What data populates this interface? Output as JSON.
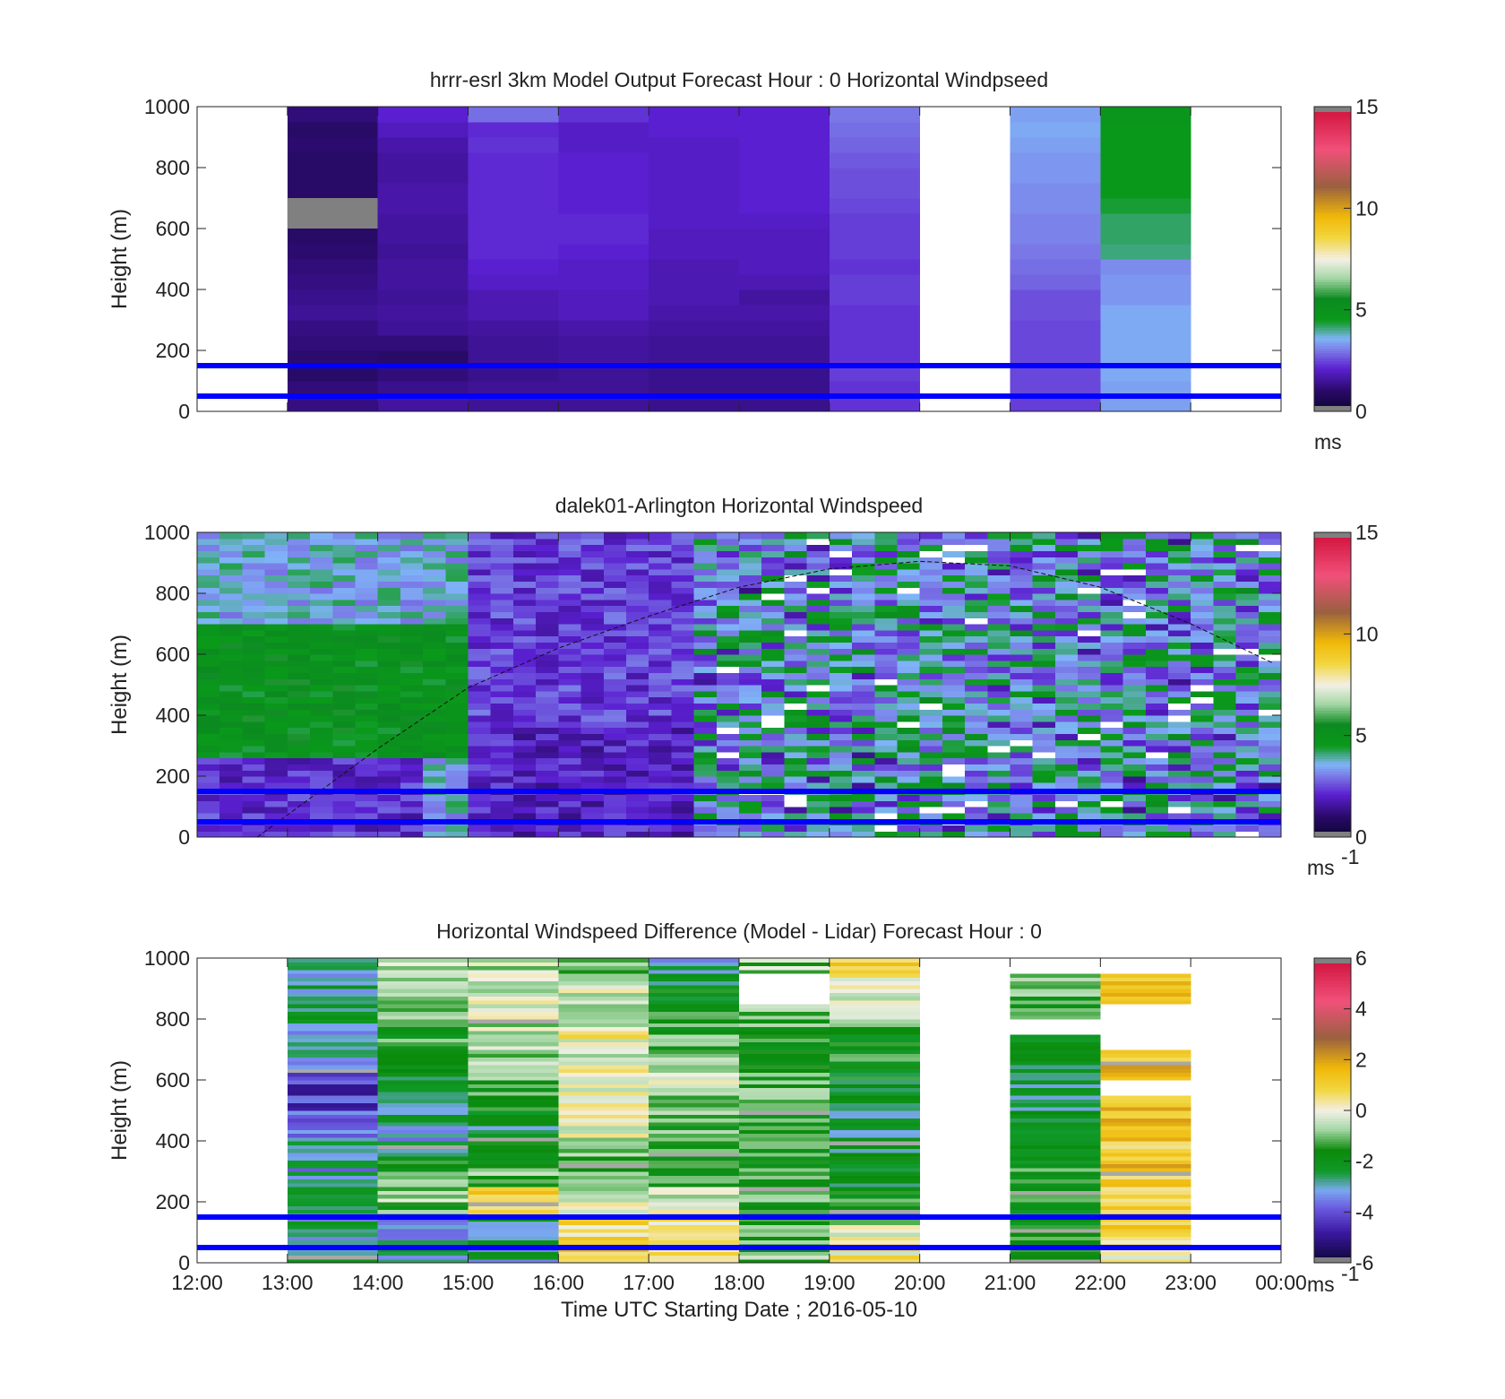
{
  "chart_data": [
    {
      "type": "heatmap",
      "title": "hrrr-esrl 3km Model Output   Forecast Hour : 0 Horizontal Windpseed",
      "xlabel": "",
      "ylabel": "Height (m)",
      "xlim": [
        "12:00",
        "00:00"
      ],
      "ylim": [
        0,
        1000
      ],
      "yticks": [
        "0",
        "200",
        "400",
        "600",
        "800",
        "1000"
      ],
      "colorbar": {
        "min": 0,
        "max": 15,
        "ticks": [
          "0",
          "5",
          "10",
          "15"
        ],
        "unit": "ms",
        "unit_sup": "",
        "colormap": "windspeed"
      },
      "reference_lines_m": [
        50,
        150
      ],
      "columns": [
        {
          "start": "13:00",
          "end": "14:00",
          "values": [
            1.3,
            1.2,
            1.0,
            1.1,
            1.2,
            1.3,
            1.5,
            1.4,
            1.3,
            1.2,
            1.1,
            1.0,
            1.0,
            1.1,
            1.0,
            1.0,
            1.0,
            1.1,
            1.0,
            1.2
          ],
          "nan_at_m": [
            600,
            700
          ]
        },
        {
          "start": "14:00",
          "end": "15:00",
          "values": [
            1.6,
            1.4,
            1.2,
            1.0,
            1.2,
            1.5,
            1.6,
            1.5,
            1.6,
            1.6,
            1.5,
            1.6,
            1.6,
            1.7,
            1.7,
            1.6,
            1.6,
            1.7,
            1.9,
            2.1
          ]
        },
        {
          "start": "15:00",
          "end": "16:00",
          "values": [
            1.5,
            1.5,
            1.4,
            1.5,
            1.5,
            1.6,
            1.8,
            1.8,
            2.0,
            2.1,
            2.2,
            2.2,
            2.2,
            2.2,
            2.2,
            2.2,
            2.2,
            2.3,
            2.2,
            2.9
          ]
        },
        {
          "start": "16:00",
          "end": "17:00",
          "values": [
            1.5,
            1.5,
            1.5,
            1.6,
            1.6,
            1.7,
            1.9,
            1.9,
            2.0,
            2.0,
            2.1,
            2.2,
            2.2,
            2.1,
            2.1,
            2.1,
            2.1,
            2.0,
            2.0,
            2.3
          ]
        },
        {
          "start": "17:00",
          "end": "18:00",
          "values": [
            1.4,
            1.4,
            1.4,
            1.5,
            1.5,
            1.6,
            1.7,
            1.8,
            1.8,
            1.8,
            1.9,
            1.9,
            2.0,
            2.0,
            2.0,
            2.0,
            2.0,
            2.0,
            2.1,
            2.1
          ]
        },
        {
          "start": "18:00",
          "end": "19:00",
          "values": [
            1.4,
            1.4,
            1.4,
            1.5,
            1.5,
            1.6,
            1.7,
            1.6,
            1.8,
            1.9,
            1.9,
            1.9,
            2.0,
            2.1,
            2.1,
            2.1,
            2.1,
            2.1,
            2.1,
            2.1
          ]
        },
        {
          "start": "19:00",
          "end": "20:00",
          "values": [
            2.3,
            2.3,
            2.4,
            2.3,
            2.3,
            2.3,
            2.3,
            2.4,
            2.4,
            2.3,
            2.4,
            2.4,
            2.4,
            2.5,
            2.6,
            2.6,
            2.7,
            2.8,
            2.9,
            3.0
          ]
        },
        {
          "start": "21:00",
          "end": "22:00",
          "values": [
            2.4,
            2.5,
            2.5,
            2.5,
            2.5,
            2.5,
            2.6,
            2.6,
            2.8,
            2.9,
            3.0,
            3.1,
            3.1,
            3.2,
            3.2,
            3.3,
            3.3,
            3.4,
            3.5,
            3.4
          ]
        },
        {
          "start": "22:00",
          "end": "23:00",
          "values": [
            3.4,
            3.4,
            3.5,
            3.5,
            3.5,
            3.5,
            3.5,
            3.3,
            3.3,
            3.2,
            4.1,
            4.2,
            4.2,
            4.4,
            4.6,
            4.6,
            4.6,
            4.6,
            4.6,
            4.8
          ]
        }
      ]
    },
    {
      "type": "heatmap",
      "title": "dalek01-Arlington  Horizontal Windspeed",
      "xlabel": "",
      "ylabel": "Height (m)",
      "xlim": [
        "12:00",
        "00:00"
      ],
      "ylim": [
        0,
        1000
      ],
      "yticks": [
        "0",
        "200",
        "400",
        "600",
        "800",
        "1000"
      ],
      "colorbar": {
        "min": 0,
        "max": 15,
        "ticks": [
          "0",
          "5",
          "10",
          "15"
        ],
        "unit": "ms",
        "unit_sup": "-1",
        "colormap": "windspeed"
      },
      "reference_lines_m": [
        50,
        150
      ],
      "time_resolution_minutes": 15,
      "overlay_curve": {
        "style": "dashed",
        "x": [
          "12:40",
          "14:00",
          "15:00",
          "16:00",
          "17:00",
          "18:00",
          "19:00",
          "20:00",
          "21:00",
          "22:00",
          "23:00",
          "23:55"
        ],
        "y": [
          0,
          290,
          490,
          620,
          725,
          820,
          880,
          905,
          890,
          820,
          700,
          570
        ]
      }
    },
    {
      "type": "heatmap",
      "title": "Horizontal Windspeed Difference (Model - Lidar) Forecast Hour : 0",
      "xlabel": "Time UTC  Starting Date ; 2016-05-10",
      "ylabel": "Height (m)",
      "xlim": [
        "12:00",
        "00:00"
      ],
      "xticks": [
        "12:00",
        "13:00",
        "14:00",
        "15:00",
        "16:00",
        "17:00",
        "18:00",
        "19:00",
        "20:00",
        "21:00",
        "22:00",
        "23:00",
        "00:00"
      ],
      "ylim": [
        0,
        1000
      ],
      "yticks": [
        "0",
        "200",
        "400",
        "600",
        "800",
        "1000"
      ],
      "colorbar": {
        "min": -6,
        "max": 6,
        "ticks": [
          "-6",
          "-4",
          "-2",
          "0",
          "2",
          "4",
          "6"
        ],
        "unit": "ms",
        "unit_sup": "-1",
        "colormap": "difference"
      },
      "reference_lines_m": [
        50,
        150
      ],
      "columns": [
        {
          "start": "13:00",
          "end": "14:00",
          "mean_profile": [
            -2.5,
            -2.7,
            -2.9,
            -2.6,
            -2.3,
            -2.8,
            -3.1,
            -3.0,
            -3.4,
            -3.9,
            -4.2,
            -4.3,
            -3.8,
            -3.0,
            -2.9,
            -2.8,
            -2.6,
            -2.6,
            -2.7,
            -2.9
          ]
        },
        {
          "start": "14:00",
          "end": "15:00",
          "mean_profile": [
            -2.8,
            -2.9,
            -3.0,
            -1.2,
            -0.6,
            -1.3,
            -1.7,
            -2.5,
            -2.9,
            -2.6,
            -2.9,
            -2.4,
            -2.2,
            -1.8,
            -1.5,
            -1.3,
            -1.2,
            -1.0,
            -0.9,
            -0.5
          ]
        },
        {
          "start": "15:00",
          "end": "16:00",
          "mean_profile": [
            -2.7,
            -2.6,
            -2.4,
            1.0,
            0.9,
            -1.2,
            -1.6,
            -2.0,
            -2.4,
            -2.1,
            -1.6,
            -1.4,
            -1.2,
            -1.0,
            -0.8,
            -0.6,
            -0.4,
            -0.3,
            -0.3,
            -0.5
          ]
        },
        {
          "start": "16:00",
          "end": "17:00",
          "mean_profile": [
            0.8,
            0.7,
            0.6,
            0.2,
            -0.4,
            -0.8,
            -0.9,
            -0.5,
            -0.3,
            0.3,
            0.5,
            0.1,
            0.3,
            -0.1,
            0.2,
            -0.2,
            -0.2,
            -0.4,
            -0.6,
            -0.8
          ]
        },
        {
          "start": "17:00",
          "end": "18:00",
          "mean_profile": [
            0.4,
            0.3,
            0.2,
            -0.3,
            -0.6,
            -1.1,
            -1.3,
            -1.5,
            -1.3,
            -1.1,
            -0.6,
            -0.2,
            -0.5,
            -0.9,
            -1.2,
            -1.5,
            -1.7,
            -2.0,
            -2.6,
            -2.9
          ]
        },
        {
          "start": "18:00",
          "end": "19:00",
          "mean_profile": [
            -1.0,
            -1.2,
            -1.3,
            -1.5,
            -1.4,
            -1.3,
            -1.5,
            -1.6,
            -1.4,
            -1.6,
            -1.4,
            -1.3,
            -1.4,
            -1.7,
            -1.5,
            -1.3,
            -1.1,
            "NaN",
            "NaN",
            -0.8
          ]
        },
        {
          "start": "19:00",
          "end": "20:00",
          "mean_profile": [
            0.3,
            0.2,
            -0.4,
            -1.2,
            -1.5,
            -2.0,
            -2.2,
            -2.3,
            -2.4,
            -2.4,
            -2.2,
            -2.0,
            -1.8,
            -1.6,
            -1.5,
            -1.1,
            -0.9,
            -0.5,
            0.2,
            1.2
          ]
        },
        {
          "start": "21:00",
          "end": "22:00",
          "mean_profile": [
            -1.7,
            -1.7,
            -1.7,
            -1.5,
            -1.4,
            -1.5,
            -1.6,
            -1.6,
            -2.0,
            -2.2,
            -2.5,
            -2.6,
            -2.6,
            -2.4,
            -2.3,
            "NaN",
            -1.3,
            -1.1,
            -1.0,
            "NaN"
          ]
        },
        {
          "start": "22:00",
          "end": "23:00",
          "mean_profile": [
            0.4,
            0.7,
            1.1,
            1.3,
            1.0,
            1.2,
            1.3,
            1.1,
            1.4,
            1.3,
            1.4,
            "NaN",
            1.5,
            1.5,
            "NaN",
            "NaN",
            "NaN",
            1.5,
            1.3,
            "NaN"
          ]
        }
      ]
    }
  ]
}
